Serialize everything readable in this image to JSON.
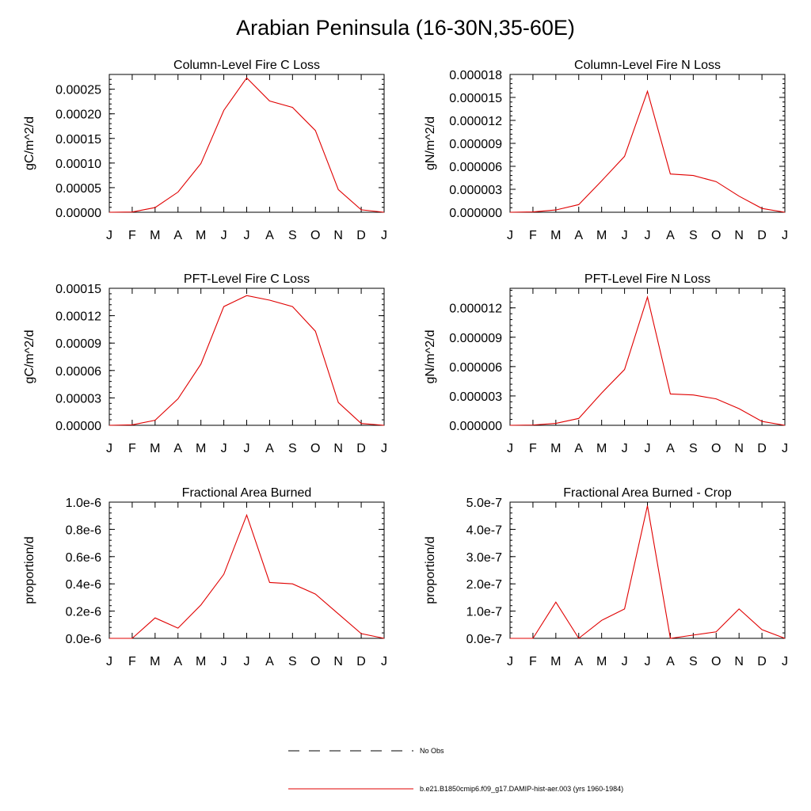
{
  "figure_title": "Arabian Peninsula (16-30N,35-60E)",
  "chart_data": [
    {
      "type": "line",
      "title": "Column-Level Fire C Loss",
      "ylabel": "gC/m^2/d",
      "categories": [
        "J",
        "F",
        "M",
        "A",
        "M",
        "J",
        "J",
        "A",
        "S",
        "O",
        "N",
        "D",
        "J"
      ],
      "ylim": [
        0,
        0.00028
      ],
      "yticks": [
        0,
        5e-05,
        0.0001,
        0.00015,
        0.0002,
        0.00025
      ],
      "ytick_labels": [
        "0.00000",
        "0.00005",
        "0.00010",
        "0.00015",
        "0.00020",
        "0.00025"
      ],
      "series": [
        {
          "name": "b.e21.B1850cmip6.f09_g17.DAMIP-hist-aer.003 (yrs 1960-1984)",
          "color": "#e00000",
          "values": [
            0,
            5e-07,
            9.5e-06,
            4.1e-05,
            9.9e-05,
            0.000207,
            0.000273,
            0.000226,
            0.000213,
            0.000166,
            4.6e-05,
            5e-06,
            0
          ]
        }
      ]
    },
    {
      "type": "line",
      "title": "Column-Level Fire N Loss",
      "ylabel": "gN/m^2/d",
      "categories": [
        "J",
        "F",
        "M",
        "A",
        "M",
        "J",
        "J",
        "A",
        "S",
        "O",
        "N",
        "D",
        "J"
      ],
      "ylim": [
        0,
        1.8e-05
      ],
      "yticks": [
        0,
        3e-06,
        6e-06,
        9e-06,
        1.2e-05,
        1.5e-05,
        1.8e-05
      ],
      "ytick_labels": [
        "0.000000",
        "0.000003",
        "0.000006",
        "0.000009",
        "0.000012",
        "0.000015",
        "0.000018"
      ],
      "series": [
        {
          "name": "b.e21.B1850cmip6.f09_g17.DAMIP-hist-aer.003 (yrs 1960-1984)",
          "color": "#e00000",
          "values": [
            0,
            5e-08,
            3e-07,
            1e-06,
            4.1e-06,
            7.3e-06,
            1.58e-05,
            5e-06,
            4.8e-06,
            4e-06,
            2.1e-06,
            5e-07,
            0
          ]
        }
      ]
    },
    {
      "type": "line",
      "title": "PFT-Level Fire C Loss",
      "ylabel": "gC/m^2/d",
      "categories": [
        "J",
        "F",
        "M",
        "A",
        "M",
        "J",
        "J",
        "A",
        "S",
        "O",
        "N",
        "D",
        "J"
      ],
      "ylim": [
        0,
        0.00015
      ],
      "yticks": [
        0,
        3e-05,
        6e-05,
        9e-05,
        0.00012,
        0.00015
      ],
      "ytick_labels": [
        "0.00000",
        "0.00003",
        "0.00006",
        "0.00009",
        "0.00012",
        "0.00015"
      ],
      "series": [
        {
          "name": "b.e21.B1850cmip6.f09_g17.DAMIP-hist-aer.003 (yrs 1960-1984)",
          "color": "#e00000",
          "values": [
            0,
            5e-07,
            5.5e-06,
            2.9e-05,
            6.7e-05,
            0.00013,
            0.000142,
            0.000137,
            0.00013,
            0.000103,
            2.5e-05,
            2e-06,
            0
          ]
        }
      ]
    },
    {
      "type": "line",
      "title": "PFT-Level Fire N Loss",
      "ylabel": "gN/m^2/d",
      "categories": [
        "J",
        "F",
        "M",
        "A",
        "M",
        "J",
        "J",
        "A",
        "S",
        "O",
        "N",
        "D",
        "J"
      ],
      "ylim": [
        0,
        1.4e-05
      ],
      "yticks": [
        0,
        3e-06,
        6e-06,
        9e-06,
        1.2e-05
      ],
      "ytick_labels": [
        "0.000000",
        "0.000003",
        "0.000006",
        "0.000009",
        "0.000012"
      ],
      "series": [
        {
          "name": "b.e21.B1850cmip6.f09_g17.DAMIP-hist-aer.003 (yrs 1960-1984)",
          "color": "#e00000",
          "values": [
            0,
            3e-08,
            2e-07,
            7e-07,
            3.3e-06,
            5.7e-06,
            1.31e-05,
            3.2e-06,
            3.1e-06,
            2.7e-06,
            1.7e-06,
            4e-07,
            0
          ]
        }
      ]
    },
    {
      "type": "line",
      "title": "Fractional Area Burned",
      "ylabel": "proportion/d",
      "categories": [
        "J",
        "F",
        "M",
        "A",
        "M",
        "J",
        "J",
        "A",
        "S",
        "O",
        "N",
        "D",
        "J"
      ],
      "ylim": [
        0,
        1e-06
      ],
      "yticks": [
        0,
        2e-07,
        4e-07,
        6e-07,
        8e-07,
        1e-06
      ],
      "ytick_labels": [
        "0.0e-6",
        "0.2e-6",
        "0.4e-6",
        "0.6e-6",
        "0.8e-6",
        "1.0e-6"
      ],
      "series": [
        {
          "name": "b.e21.B1850cmip6.f09_g17.DAMIP-hist-aer.003 (yrs 1960-1984)",
          "color": "#e00000",
          "values": [
            0,
            0,
            1.5e-07,
            7.5e-08,
            2.45e-07,
            4.7e-07,
            9.05e-07,
            4.1e-07,
            4e-07,
            3.25e-07,
            1.8e-07,
            3.5e-08,
            0
          ]
        }
      ]
    },
    {
      "type": "line",
      "title": "Fractional Area Burned - Crop",
      "ylabel": "proportion/d",
      "categories": [
        "J",
        "F",
        "M",
        "A",
        "M",
        "J",
        "J",
        "A",
        "S",
        "O",
        "N",
        "D",
        "J"
      ],
      "ylim": [
        0,
        5e-07
      ],
      "yticks": [
        0,
        1e-07,
        2e-07,
        3e-07,
        4e-07,
        5e-07
      ],
      "ytick_labels": [
        "0.0e-7",
        "1.0e-7",
        "2.0e-7",
        "3.0e-7",
        "4.0e-7",
        "5.0e-7"
      ],
      "series": [
        {
          "name": "b.e21.B1850cmip6.f09_g17.DAMIP-hist-aer.003 (yrs 1960-1984)",
          "color": "#e00000",
          "values": [
            0,
            0,
            1.33e-07,
            0,
            6.6e-08,
            1.08e-07,
            4.87e-07,
            0,
            1.2e-08,
            2.4e-08,
            1.08e-07,
            3.2e-08,
            0
          ]
        }
      ]
    }
  ],
  "legend": {
    "items": [
      {
        "label": "No Obs",
        "style": "dashed",
        "color": "#000000"
      },
      {
        "label": "b.e21.B1850cmip6.f09_g17.DAMIP-hist-aer.003 (yrs 1960-1984)",
        "style": "solid",
        "color": "#e00000"
      }
    ]
  }
}
